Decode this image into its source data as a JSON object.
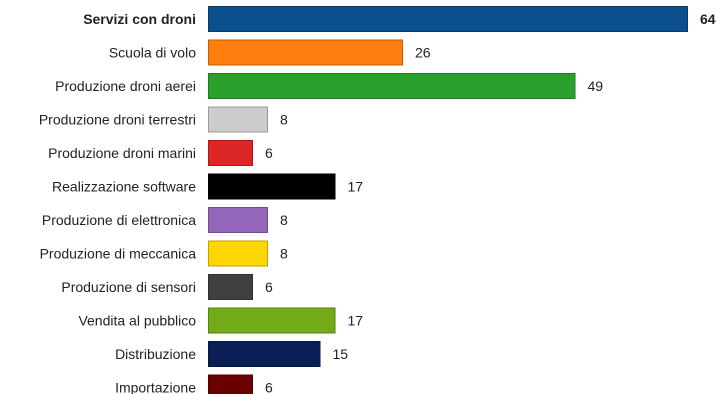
{
  "chart_data": {
    "type": "bar",
    "orientation": "horizontal",
    "title": "",
    "xlabel": "",
    "ylabel": "",
    "xlim": [
      0,
      64
    ],
    "grid": false,
    "legend": "none",
    "highlighted_category": "Servizi con droni",
    "categories": [
      "Servizi con droni",
      "Scuola di volo",
      "Produzione droni aerei",
      "Produzione droni terrestri",
      "Produzione droni marini",
      "Realizzazione software",
      "Produzione di elettronica",
      "Produzione di meccanica",
      "Produzione di sensori",
      "Vendita al pubblico",
      "Distribuzione",
      "Importazione"
    ],
    "values": [
      64,
      26,
      49,
      8,
      6,
      17,
      8,
      8,
      6,
      17,
      15,
      6
    ],
    "colors": [
      "#0b4f8c",
      "#ff7f0e",
      "#2ca02c",
      "#cccccc",
      "#dc2626",
      "#000000",
      "#9467bd",
      "#ffd700",
      "#404040",
      "#72aa18",
      "#0a1f56",
      "#6b0000"
    ],
    "stroke_colors": [
      "#083b69",
      "#c05f0a",
      "#217821",
      "#999999",
      "#a51c1c",
      "#000000",
      "#6f4d8e",
      "#bfa100",
      "#303030",
      "#568012",
      "#081741",
      "#500000"
    ]
  }
}
